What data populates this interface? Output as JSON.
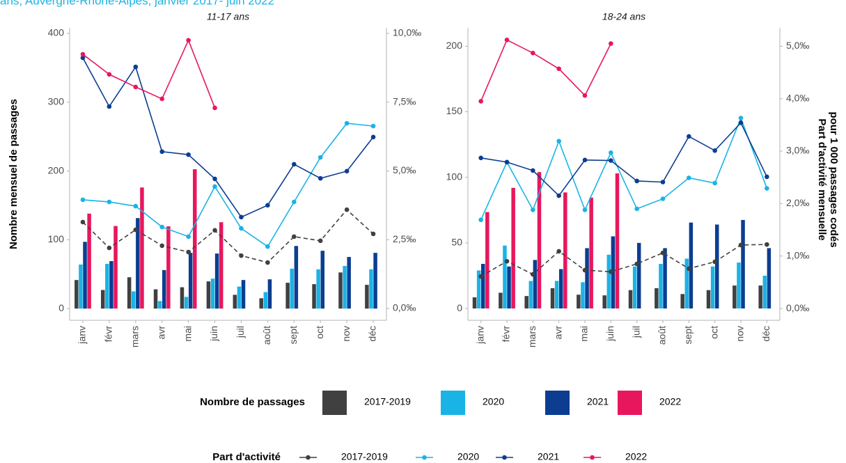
{
  "title": "ans, Auvergne-Rhône-Alpes, janvier 2017- juin 2022",
  "legend": {
    "bars": "Nombre de passages",
    "lines": "Part d'activité"
  },
  "chart_data": [
    {
      "type": "bar",
      "title": "11-17 ans",
      "ylabel": "Nombre mensuel de passages",
      "categories": [
        "janv",
        "févr",
        "mars",
        "avr",
        "mai",
        "juin",
        "juil",
        "août",
        "sept",
        "oct",
        "nov",
        "déc"
      ],
      "ylim": [
        -17,
        408
      ],
      "yticks": [
        0,
        100,
        200,
        300,
        400
      ],
      "y2lim": [
        -0.43,
        10.2
      ],
      "y2ticks": [
        {
          "value": 0,
          "label": "0,0‰"
        },
        {
          "value": 2.5,
          "label": "2,5‰"
        },
        {
          "value": 5,
          "label": "5,0‰"
        },
        {
          "value": 7.5,
          "label": "7,5‰"
        },
        {
          "value": 10,
          "label": "10,0‰"
        }
      ],
      "series": [
        {
          "name": "2017-2019",
          "type": "bar",
          "color": "#404040",
          "values": [
            41.5,
            27,
            45.5,
            28,
            31,
            39.5,
            20,
            15,
            37.5,
            35.5,
            52.5,
            34.5
          ]
        },
        {
          "name": "2020",
          "type": "bar",
          "color": "#1ab3e6",
          "values": [
            64,
            65,
            25,
            11,
            17,
            43.5,
            32,
            24,
            58,
            57,
            62,
            57
          ]
        },
        {
          "name": "2021",
          "type": "bar",
          "color": "#0c3d91",
          "values": [
            97,
            69,
            131.5,
            56,
            81,
            80,
            41.5,
            42.5,
            91,
            84,
            75,
            81
          ]
        },
        {
          "name": "2022",
          "type": "bar",
          "color": "#e8175d",
          "values": [
            138,
            120,
            176,
            119.5,
            202.5,
            125.5,
            null,
            null,
            null,
            null,
            null,
            null
          ]
        },
        {
          "name": "2017-2019",
          "type": "line",
          "axis": "y2",
          "dashed": true,
          "color": "#404040",
          "values": [
            3.14,
            2.2,
            2.86,
            2.28,
            2.05,
            2.84,
            1.92,
            1.67,
            2.61,
            2.46,
            3.59,
            2.71
          ]
        },
        {
          "name": "2020",
          "type": "line",
          "axis": "y2",
          "dashed": false,
          "color": "#1ab3e6",
          "values": [
            3.95,
            3.87,
            3.72,
            2.96,
            2.61,
            4.43,
            2.91,
            2.25,
            3.87,
            5.49,
            6.73,
            6.63
          ]
        },
        {
          "name": "2021",
          "type": "line",
          "axis": "y2",
          "dashed": false,
          "color": "#0c3d91",
          "values": [
            9.11,
            7.34,
            8.78,
            5.7,
            5.59,
            4.71,
            3.32,
            3.75,
            5.24,
            4.73,
            4.99,
            6.23
          ]
        },
        {
          "name": "2022",
          "type": "line",
          "axis": "y2",
          "dashed": false,
          "color": "#e8175d",
          "values": [
            9.24,
            8.51,
            8.05,
            7.62,
            9.75,
            7.29,
            null,
            null,
            null,
            null,
            null,
            null
          ]
        }
      ]
    },
    {
      "type": "bar",
      "title": "18-24 ans",
      "y2label": [
        "Part d'activité mensuelle",
        "pour 1 000 passages codés"
      ],
      "categories": [
        "janv",
        "févr",
        "mars",
        "avr",
        "mai",
        "juin",
        "juil",
        "août",
        "sept",
        "oct",
        "nov",
        "déc"
      ],
      "ylim": [
        -9,
        214
      ],
      "yticks": [
        0,
        50,
        100,
        150,
        200
      ],
      "y2lim": [
        -0.225,
        5.35
      ],
      "y2ticks": [
        {
          "value": 0,
          "label": "0,0‰"
        },
        {
          "value": 1,
          "label": "1,0‰"
        },
        {
          "value": 2,
          "label": "2,0‰"
        },
        {
          "value": 3,
          "label": "3,0‰"
        },
        {
          "value": 4,
          "label": "4,0‰"
        },
        {
          "value": 5,
          "label": "5,0‰"
        }
      ],
      "series": [
        {
          "name": "2017-2019",
          "type": "bar",
          "color": "#404040",
          "values": [
            8.5,
            12,
            9.5,
            15.5,
            10.5,
            10,
            14,
            15.5,
            11,
            14,
            17.5,
            17.5
          ]
        },
        {
          "name": "2020",
          "type": "bar",
          "color": "#1ab3e6",
          "values": [
            29,
            48,
            21,
            21,
            20,
            41,
            32,
            34,
            38,
            32,
            35,
            25
          ]
        },
        {
          "name": "2021",
          "type": "bar",
          "color": "#0c3d91",
          "values": [
            34,
            32,
            37,
            30,
            46,
            55,
            50,
            46,
            65.5,
            64,
            67.5,
            46
          ]
        },
        {
          "name": "2022",
          "type": "bar",
          "color": "#e8175d",
          "values": [
            73.5,
            92,
            104,
            88.5,
            84.5,
            103,
            null,
            null,
            null,
            null,
            null,
            null
          ]
        },
        {
          "name": "2017-2019",
          "type": "line",
          "axis": "y2",
          "dashed": true,
          "color": "#404040",
          "values": [
            0.61,
            0.9,
            0.65,
            1.09,
            0.73,
            0.7,
            0.85,
            1.06,
            0.76,
            0.89,
            1.21,
            1.22
          ]
        },
        {
          "name": "2020",
          "type": "line",
          "axis": "y2",
          "dashed": false,
          "color": "#1ab3e6",
          "values": [
            1.69,
            2.79,
            1.88,
            3.19,
            1.88,
            2.97,
            1.9,
            2.09,
            2.49,
            2.39,
            3.63,
            2.29
          ]
        },
        {
          "name": "2021",
          "type": "line",
          "axis": "y2",
          "dashed": false,
          "color": "#0c3d91",
          "values": [
            2.87,
            2.79,
            2.63,
            2.15,
            2.83,
            2.82,
            2.43,
            2.41,
            3.28,
            3.01,
            3.54,
            2.51
          ]
        },
        {
          "name": "2022",
          "type": "line",
          "axis": "y2",
          "dashed": false,
          "color": "#e8175d",
          "values": [
            3.95,
            5.12,
            4.87,
            4.57,
            4.06,
            5.05,
            null,
            null,
            null,
            null,
            null,
            null
          ]
        }
      ]
    }
  ]
}
